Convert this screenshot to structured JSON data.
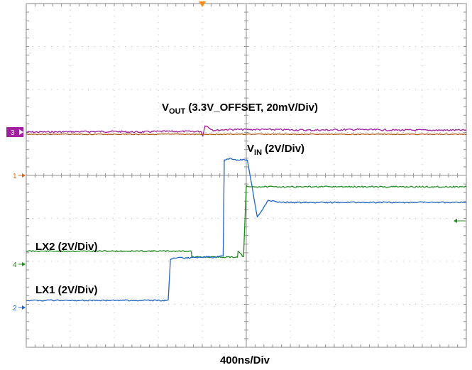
{
  "chart_data": {
    "type": "line",
    "title": "",
    "xlabel": "400ns/Div",
    "ylabel": "",
    "x_unit": "ns",
    "x_per_div": 400,
    "divisions": {
      "horizontal": 10,
      "vertical": 8
    },
    "xlim": [
      0,
      4000
    ],
    "grid": true,
    "channel_markers": [
      {
        "label": "3",
        "color": "#a020a0",
        "style": "box"
      },
      {
        "label": "1",
        "color": "#d2691e",
        "style": "arrow"
      },
      {
        "label": "4",
        "color": "#1e8c1e",
        "style": "arrow"
      },
      {
        "label": "2",
        "color": "#1e64c8",
        "style": "arrow"
      }
    ],
    "trigger_marker_color": "#ff8c1a",
    "series": [
      {
        "name": "VOUT (3.3V_OFFSET, 20mV/Div)",
        "label_main": "V",
        "label_sub": "OUT",
        "label_rest": " (3.3V_OFFSET, 20mV/Div)",
        "color": "#a020a0",
        "unit": "mV",
        "x": [
          0,
          800,
          1000,
          1200,
          1590,
          1605,
          1625,
          1660,
          1700,
          1750,
          1800,
          2200,
          2600,
          3000,
          3400,
          3800,
          4000
        ],
        "y": [
          0,
          1,
          0,
          1,
          1,
          -6,
          11,
          7,
          3,
          3,
          4,
          4,
          3,
          4,
          3,
          3,
          3
        ]
      },
      {
        "name": "VIN (2V/Div)",
        "label_main": "V",
        "label_sub": "IN",
        "label_rest": " (2V/Div)",
        "color": "#b05a1a",
        "unit": "V",
        "x": [
          0,
          1000,
          2000,
          3000,
          4000
        ],
        "y": [
          -0.02,
          -0.02,
          -0.02,
          -0.02,
          -0.02
        ]
      },
      {
        "name": "LX2 (2V/Div)",
        "label_main": "LX2 (2V/Div)",
        "label_sub": "",
        "label_rest": "",
        "color": "#1e8c1e",
        "unit": "V",
        "x": [
          0,
          1500,
          1505,
          1920,
          1925,
          1975,
          2000,
          2010,
          2100,
          2200,
          4000
        ],
        "y": [
          0.28,
          0.28,
          0,
          0,
          0.28,
          0,
          3.34,
          3.3,
          3.3,
          3.3,
          3.3
        ]
      },
      {
        "name": "LX1 (2V/Div)",
        "label_main": "LX1 (2V/Div)",
        "label_sub": "",
        "label_rest": "",
        "color": "#1e64c8",
        "unit": "V",
        "x": [
          0,
          1200,
          1290,
          1310,
          1350,
          1500,
          1650,
          1700,
          1790,
          1800,
          1860,
          1900,
          2000,
          2010,
          2100,
          2200,
          2300,
          3000,
          4000
        ],
        "y": [
          0,
          0,
          0,
          1.9,
          2.0,
          2.0,
          2.05,
          2.0,
          2.1,
          6.6,
          6.65,
          6.6,
          6.6,
          6.6,
          3.9,
          4.7,
          4.6,
          4.6,
          4.6
        ]
      }
    ]
  }
}
